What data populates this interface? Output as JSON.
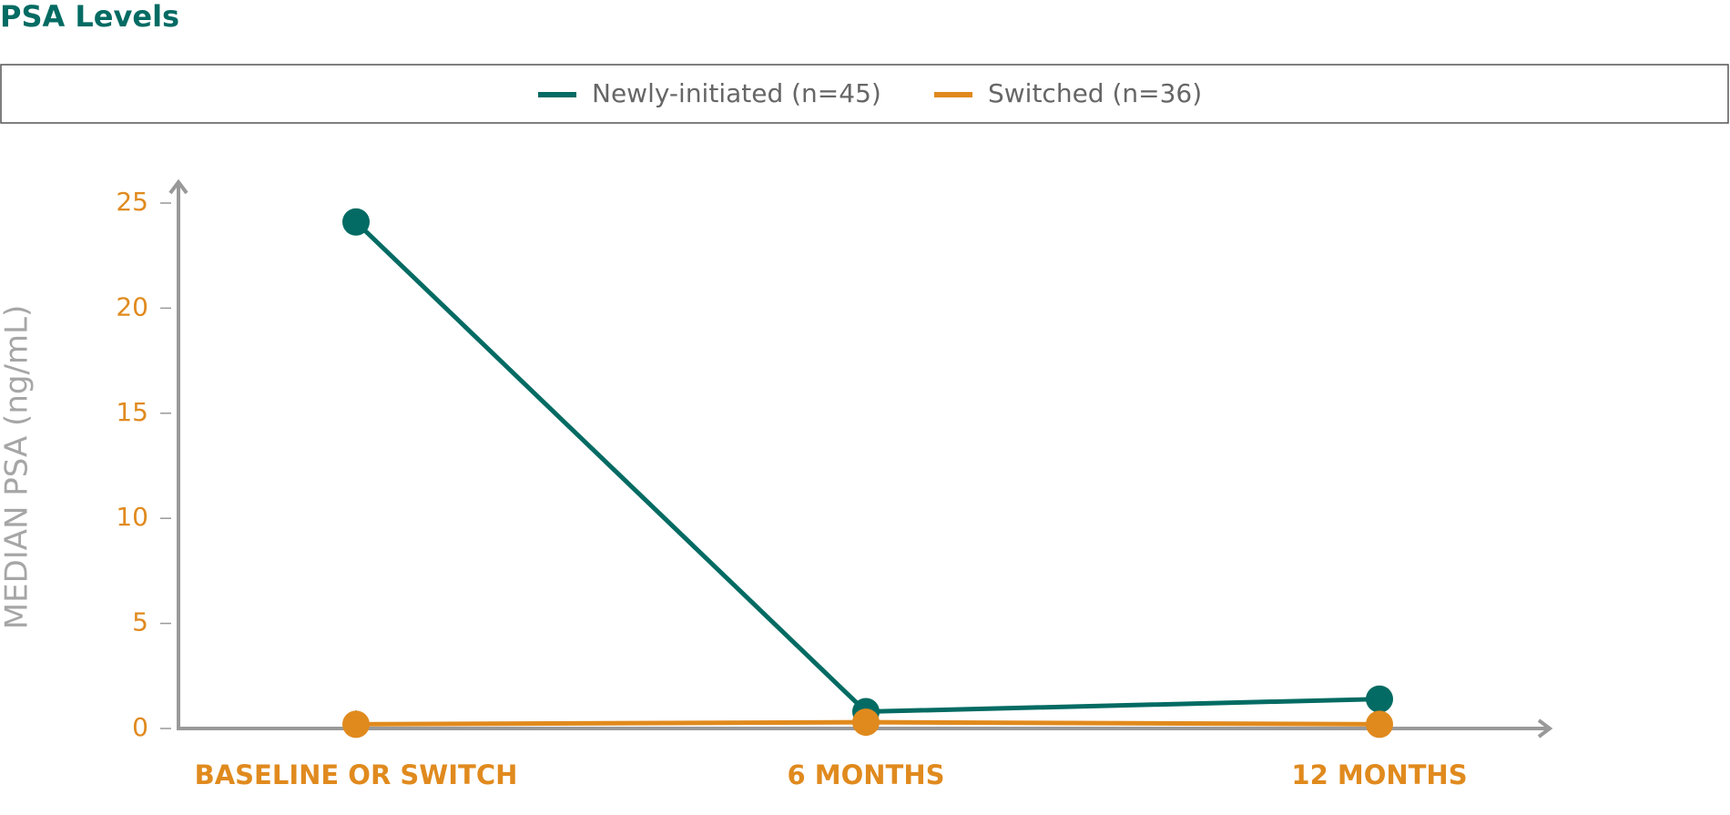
{
  "chart_data": {
    "type": "line",
    "title": "PSA Levels",
    "y_label": "MEDIAN PSA (ng/mL)",
    "categories": [
      "BASELINE OR SWITCH",
      "6 MONTHS",
      "12 MONTHS"
    ],
    "series": [
      {
        "name": "Newly-initiated (n=45)",
        "color": "#036b63",
        "values": [
          24.1,
          0.8,
          1.4
        ]
      },
      {
        "name": "Switched (n=36)",
        "color": "#e08a1e",
        "values": [
          0.2,
          0.3,
          0.2
        ]
      }
    ],
    "ylim": [
      0,
      25
    ],
    "yticks": [
      0,
      5,
      10,
      15,
      20,
      25
    ],
    "legend": "top"
  }
}
